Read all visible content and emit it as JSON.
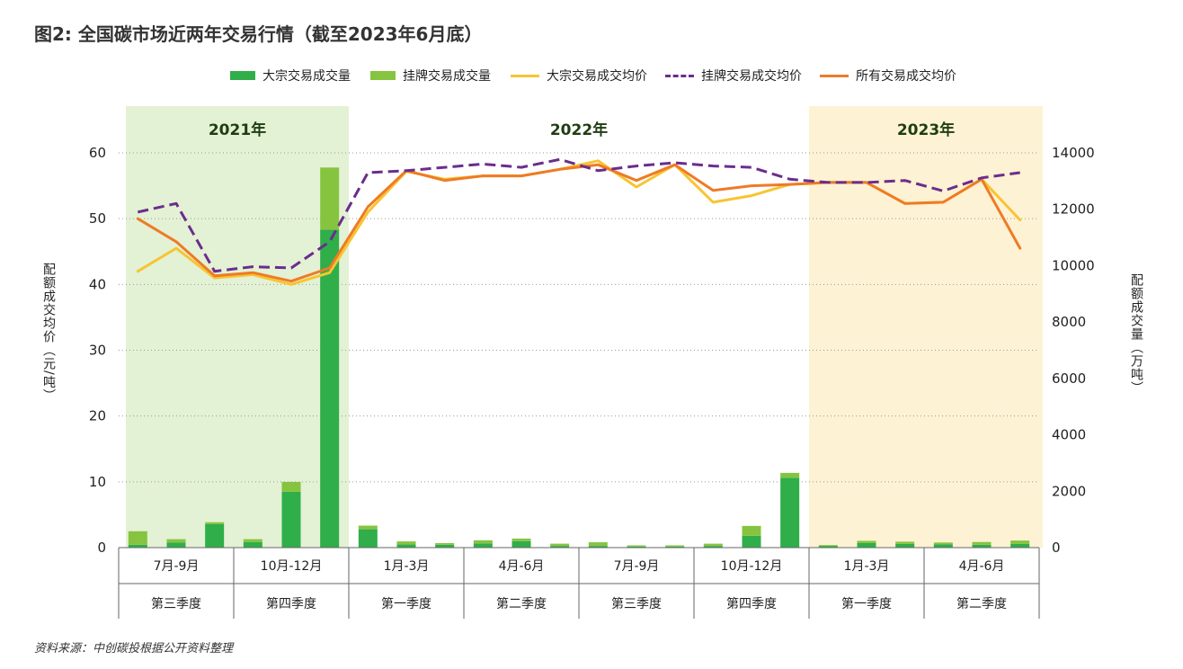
{
  "title": "图2: 全国碳市场近两年交易行情（截至2023年6月底）",
  "source": "资料来源：中创碳投根据公开资料整理",
  "legend": [
    {
      "label": "大宗交易成交量",
      "kind": "bar",
      "color": "#2fae4a"
    },
    {
      "label": "挂牌交易成交量",
      "kind": "bar",
      "color": "#86c440"
    },
    {
      "label": "大宗交易成交均价",
      "kind": "line",
      "color": "#f7c531"
    },
    {
      "label": "挂牌交易成交均价",
      "kind": "dash",
      "color": "#6b2d8c"
    },
    {
      "label": "所有交易成交均价",
      "kind": "line",
      "color": "#ee7b26"
    }
  ],
  "left_axis_title": "配额成交均价（元/吨）",
  "right_axis_title": "配额成交量（万吨）",
  "chart_data": {
    "type": "bar+line",
    "years": [
      {
        "label": "2021年",
        "color": "#e3f1d5"
      },
      {
        "label": "2022年",
        "color": "#ffffff"
      },
      {
        "label": "2023年",
        "color": "#fdf2d3"
      }
    ],
    "month_groups": [
      "7月-9月",
      "10月-12月",
      "1月-3月",
      "4月-6月",
      "7月-9月",
      "10月-12月",
      "1月-3月",
      "4月-6月"
    ],
    "quarter_groups": [
      "第三季度",
      "第四季度",
      "第一季度",
      "第二季度",
      "第三季度",
      "第四季度",
      "第一季度",
      "第二季度"
    ],
    "categories": [
      "2021-07",
      "2021-08",
      "2021-09",
      "2021-10",
      "2021-11",
      "2021-12",
      "2022-01",
      "2022-02",
      "2022-03",
      "2022-04",
      "2022-05",
      "2022-06",
      "2022-07",
      "2022-08",
      "2022-09",
      "2022-10",
      "2022-11",
      "2022-12",
      "2023-01",
      "2023-02",
      "2023-03",
      "2023-04",
      "2023-05",
      "2023-06"
    ],
    "left_axis": {
      "min": 0,
      "max": 60,
      "ticks": [
        0,
        10,
        20,
        30,
        40,
        50,
        60
      ]
    },
    "right_axis": {
      "min": 0,
      "max": 14000,
      "ticks": [
        0,
        2000,
        4000,
        6000,
        8000,
        10000,
        12000,
        14000
      ]
    },
    "bar_series": [
      {
        "name": "大宗交易成交量",
        "axis": "right",
        "color": "#2fae4a",
        "values": [
          100,
          180,
          830,
          200,
          1980,
          11280,
          650,
          110,
          100,
          150,
          230,
          60,
          60,
          40,
          40,
          60,
          420,
          2480,
          60,
          160,
          130,
          120,
          100,
          130
        ]
      },
      {
        "name": "挂牌交易成交量",
        "axis": "right",
        "color": "#86c440",
        "values": [
          480,
          120,
          70,
          100,
          350,
          2200,
          130,
          110,
          60,
          110,
          90,
          80,
          130,
          40,
          40,
          80,
          350,
          170,
          30,
          80,
          80,
          60,
          100,
          120
        ]
      }
    ],
    "line_series": [
      {
        "name": "大宗交易成交均价",
        "axis": "left",
        "color": "#f7c531",
        "dash": false,
        "values": [
          42.0,
          45.5,
          41.0,
          41.5,
          40.0,
          41.8,
          51.0,
          57.2,
          56.0,
          56.5,
          56.5,
          57.5,
          58.8,
          54.8,
          58.2,
          52.5,
          53.5,
          55.2,
          55.5,
          55.5,
          52.3,
          52.5,
          56.0,
          49.8
        ]
      },
      {
        "name": "挂牌交易成交均价",
        "axis": "left",
        "color": "#6b2d8c",
        "dash": true,
        "values": [
          51.0,
          52.3,
          42.0,
          42.7,
          42.5,
          46.5,
          57.0,
          57.3,
          57.8,
          58.3,
          57.8,
          59.0,
          57.3,
          58.0,
          58.5,
          58.0,
          57.8,
          56.0,
          55.5,
          55.5,
          55.8,
          54.2,
          56.2,
          57.0
        ]
      },
      {
        "name": "所有交易成交均价",
        "axis": "left",
        "color": "#ee7b26",
        "dash": false,
        "values": [
          50.0,
          46.5,
          41.3,
          41.8,
          40.5,
          42.5,
          51.8,
          57.3,
          55.8,
          56.5,
          56.5,
          57.5,
          58.2,
          55.8,
          58.2,
          54.3,
          55.0,
          55.2,
          55.5,
          55.5,
          52.3,
          52.5,
          56.0,
          45.5
        ]
      }
    ],
    "grid": true
  }
}
